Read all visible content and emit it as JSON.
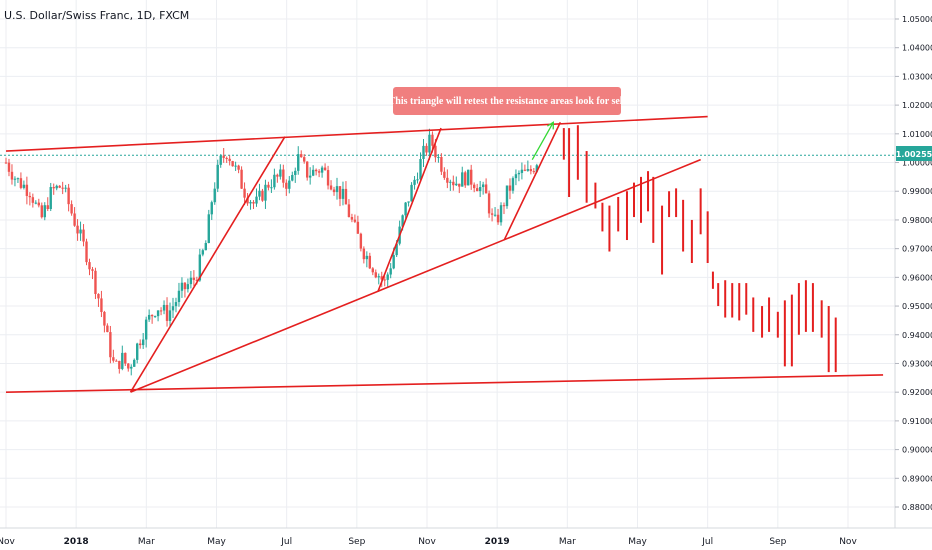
{
  "title": "U.S. Dollar/Swiss Franc, 1D, FXCM",
  "annotation": "This triangle will retest the resistance areas look for sell",
  "price_badge": "1.00255",
  "colors": {
    "up": "#26a69a",
    "down": "#ef5350",
    "drawing": "#e41f1f",
    "arrow": "#34d834",
    "annotation_bg": "#f07f7f",
    "price_line": "#26a69a",
    "grid": "#eceef2"
  },
  "chart_data": {
    "type": "candlestick",
    "symbol": "USDCHF",
    "timeframe": "1D",
    "ylim": [
      0.873,
      1.058
    ],
    "y_ticks": [
      "1.05000",
      "1.04000",
      "1.03000",
      "1.02000",
      "1.01000",
      "1.00000",
      "0.99000",
      "0.98000",
      "0.97000",
      "0.96000",
      "0.95000",
      "0.94000",
      "0.93000",
      "0.92000",
      "0.91000",
      "0.90000",
      "0.89000",
      "0.88000"
    ],
    "x_ticks": [
      {
        "label": "Nov",
        "t": 0
      },
      {
        "label": "2018",
        "t": 2
      },
      {
        "label": "Mar",
        "t": 4
      },
      {
        "label": "May",
        "t": 6
      },
      {
        "label": "Jul",
        "t": 8
      },
      {
        "label": "Sep",
        "t": 10
      },
      {
        "label": "Nov",
        "t": 12
      },
      {
        "label": "2019",
        "t": 14
      },
      {
        "label": "Mar",
        "t": 16
      },
      {
        "label": "May",
        "t": 18
      },
      {
        "label": "Jul",
        "t": 20
      },
      {
        "label": "Sep",
        "t": 22
      },
      {
        "label": "Nov",
        "t": 24
      }
    ],
    "last_price": 1.00255,
    "price_path": [
      [
        0.0,
        1.0
      ],
      [
        0.3,
        0.994
      ],
      [
        0.7,
        0.99
      ],
      [
        1.0,
        0.98
      ],
      [
        1.3,
        0.99
      ],
      [
        1.6,
        0.992
      ],
      [
        2.0,
        0.978
      ],
      [
        2.3,
        0.968
      ],
      [
        2.6,
        0.955
      ],
      [
        2.9,
        0.938
      ],
      [
        3.1,
        0.928
      ],
      [
        3.3,
        0.932
      ],
      [
        3.5,
        0.928
      ],
      [
        3.7,
        0.935
      ],
      [
        4.0,
        0.944
      ],
      [
        4.3,
        0.95
      ],
      [
        4.6,
        0.947
      ],
      [
        5.0,
        0.955
      ],
      [
        5.4,
        0.96
      ],
      [
        5.7,
        0.972
      ],
      [
        5.9,
        0.99
      ],
      [
        6.1,
        1.0
      ],
      [
        6.3,
        1.004
      ],
      [
        6.6,
        0.996
      ],
      [
        6.8,
        0.99
      ],
      [
        7.1,
        0.985
      ],
      [
        7.5,
        0.993
      ],
      [
        7.8,
        0.995
      ],
      [
        8.1,
        0.992
      ],
      [
        8.3,
        1.002
      ],
      [
        8.6,
        0.996
      ],
      [
        9.0,
        0.998
      ],
      [
        9.3,
        0.993
      ],
      [
        9.6,
        0.988
      ],
      [
        9.9,
        0.978
      ],
      [
        10.2,
        0.969
      ],
      [
        10.5,
        0.963
      ],
      [
        10.8,
        0.958
      ],
      [
        11.1,
        0.97
      ],
      [
        11.4,
        0.985
      ],
      [
        11.7,
        0.996
      ],
      [
        11.9,
        1.003
      ],
      [
        12.1,
        1.008
      ],
      [
        12.3,
        1.002
      ],
      [
        12.5,
        0.997
      ],
      [
        12.8,
        0.993
      ],
      [
        13.1,
        0.995
      ],
      [
        13.4,
        0.993
      ],
      [
        13.7,
        0.988
      ],
      [
        13.9,
        0.978
      ],
      [
        14.1,
        0.983
      ],
      [
        14.3,
        0.99
      ],
      [
        14.6,
        0.996
      ],
      [
        14.9,
        0.996
      ],
      [
        15.2,
        1.002
      ]
    ],
    "triangle_lines": [
      {
        "t1": 0.0,
        "p1": 1.004,
        "t2": 20.0,
        "p2": 1.016
      },
      {
        "t1": 3.55,
        "p1": 0.92,
        "t2": 19.8,
        "p2": 1.001
      },
      {
        "t1": 0.0,
        "p1": 0.92,
        "t2": 25.0,
        "p2": 0.926
      },
      {
        "t1": 3.55,
        "p1": 0.92,
        "t2": 7.95,
        "p2": 1.009
      },
      {
        "t1": 10.6,
        "p1": 0.955,
        "t2": 12.4,
        "p2": 1.012
      },
      {
        "t1": 14.2,
        "p1": 0.973,
        "t2": 15.8,
        "p2": 1.014
      }
    ],
    "projection_arrow": {
      "t1": 15.0,
      "p1": 1.001,
      "t2": 15.6,
      "p2": 1.014
    },
    "projected_bars": [
      {
        "t": 15.9,
        "hi": 1.012,
        "lo": 1.001
      },
      {
        "t": 16.05,
        "hi": 1.012,
        "lo": 0.988
      },
      {
        "t": 16.3,
        "hi": 1.013,
        "lo": 0.994
      },
      {
        "t": 16.55,
        "hi": 1.004,
        "lo": 0.986
      },
      {
        "t": 16.8,
        "hi": 0.993,
        "lo": 0.984
      },
      {
        "t": 17.0,
        "hi": 0.986,
        "lo": 0.976
      },
      {
        "t": 17.2,
        "hi": 0.985,
        "lo": 0.969
      },
      {
        "t": 17.45,
        "hi": 0.988,
        "lo": 0.976
      },
      {
        "t": 17.7,
        "hi": 0.99,
        "lo": 0.973
      },
      {
        "t": 17.9,
        "hi": 0.993,
        "lo": 0.981
      },
      {
        "t": 18.1,
        "hi": 0.995,
        "lo": 0.979
      },
      {
        "t": 18.3,
        "hi": 0.997,
        "lo": 0.983
      },
      {
        "t": 18.45,
        "hi": 0.995,
        "lo": 0.972
      },
      {
        "t": 18.7,
        "hi": 0.985,
        "lo": 0.961
      },
      {
        "t": 18.9,
        "hi": 0.99,
        "lo": 0.981
      },
      {
        "t": 19.1,
        "hi": 0.991,
        "lo": 0.981
      },
      {
        "t": 19.3,
        "hi": 0.987,
        "lo": 0.969
      },
      {
        "t": 19.55,
        "hi": 0.98,
        "lo": 0.965
      },
      {
        "t": 19.8,
        "hi": 0.991,
        "lo": 0.975
      },
      {
        "t": 20.0,
        "hi": 0.983,
        "lo": 0.965
      },
      {
        "t": 20.15,
        "hi": 0.962,
        "lo": 0.956
      },
      {
        "t": 20.3,
        "hi": 0.958,
        "lo": 0.95
      },
      {
        "t": 20.5,
        "hi": 0.959,
        "lo": 0.946
      },
      {
        "t": 20.7,
        "hi": 0.958,
        "lo": 0.946
      },
      {
        "t": 20.9,
        "hi": 0.958,
        "lo": 0.945
      },
      {
        "t": 21.1,
        "hi": 0.958,
        "lo": 0.947
      },
      {
        "t": 21.3,
        "hi": 0.953,
        "lo": 0.941
      },
      {
        "t": 21.55,
        "hi": 0.95,
        "lo": 0.939
      },
      {
        "t": 21.75,
        "hi": 0.953,
        "lo": 0.941
      },
      {
        "t": 22.0,
        "hi": 0.948,
        "lo": 0.939
      },
      {
        "t": 22.2,
        "hi": 0.952,
        "lo": 0.929
      },
      {
        "t": 22.4,
        "hi": 0.954,
        "lo": 0.929
      },
      {
        "t": 22.6,
        "hi": 0.958,
        "lo": 0.94
      },
      {
        "t": 22.8,
        "hi": 0.959,
        "lo": 0.941
      },
      {
        "t": 23.0,
        "hi": 0.958,
        "lo": 0.941
      },
      {
        "t": 23.25,
        "hi": 0.952,
        "lo": 0.939
      },
      {
        "t": 23.45,
        "hi": 0.95,
        "lo": 0.927
      },
      {
        "t": 23.65,
        "hi": 0.946,
        "lo": 0.927
      }
    ]
  }
}
